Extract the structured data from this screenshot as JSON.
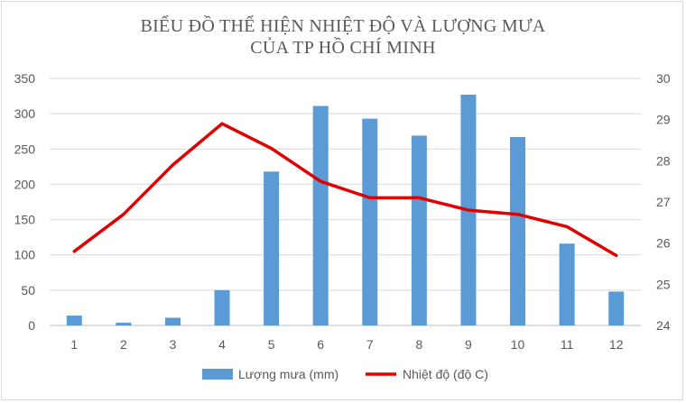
{
  "chart_data": {
    "type": "bar+line",
    "title_lines": [
      "BIỂU ĐỒ THỂ HIỆN NHIỆT ĐỘ VÀ LƯỢNG MƯA",
      "CỦA TP HỒ CHÍ MINH"
    ],
    "categories": [
      "1",
      "2",
      "3",
      "4",
      "5",
      "6",
      "7",
      "8",
      "9",
      "10",
      "11",
      "12"
    ],
    "left_axis": {
      "min": 0,
      "max": 350,
      "step": 50,
      "ticks": [
        "0",
        "50",
        "100",
        "150",
        "200",
        "250",
        "300",
        "350"
      ]
    },
    "right_axis": {
      "min": 24,
      "max": 30,
      "step": 1,
      "ticks": [
        "24",
        "25",
        "26",
        "27",
        "28",
        "29",
        "30"
      ]
    },
    "grid": true,
    "legend_position": "bottom",
    "series": [
      {
        "name": "Lượng mưa (mm)",
        "kind": "bar",
        "axis": "left",
        "color": "#5b9bd5",
        "values": [
          14,
          4,
          11,
          50,
          218,
          311,
          293,
          269,
          327,
          267,
          116,
          48
        ]
      },
      {
        "name": "Nhiệt độ (độ C)",
        "kind": "line",
        "axis": "right",
        "color": "#e00000",
        "values": [
          25.8,
          26.7,
          27.9,
          28.9,
          28.3,
          27.5,
          27.1,
          27.1,
          26.8,
          26.7,
          26.4,
          25.7
        ]
      }
    ]
  }
}
